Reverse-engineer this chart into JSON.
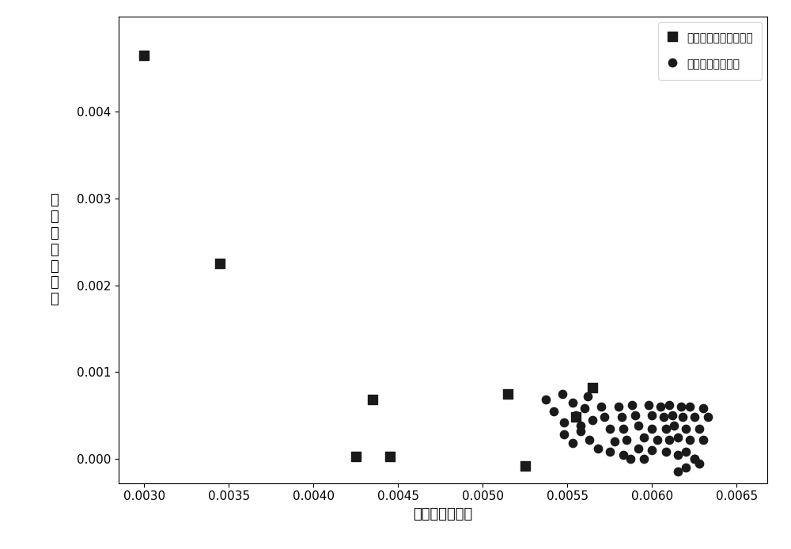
{
  "square_points": [
    [
      0.003,
      0.00465
    ],
    [
      0.00345,
      0.00225
    ],
    [
      0.00425,
      2.5e-05
    ],
    [
      0.00445,
      2.5e-05
    ],
    [
      0.00435,
      0.00068
    ],
    [
      0.00515,
      0.00075
    ],
    [
      0.00525,
      -8.5e-05
    ],
    [
      0.00555,
      0.00048
    ],
    [
      0.00565,
      0.00082
    ]
  ],
  "circle_points": [
    [
      0.00537,
      0.00068
    ],
    [
      0.00542,
      0.00055
    ],
    [
      0.00547,
      0.00075
    ],
    [
      0.00548,
      0.00042
    ],
    [
      0.00553,
      0.00065
    ],
    [
      0.00555,
      0.0005
    ],
    [
      0.00558,
      0.00038
    ],
    [
      0.0056,
      0.00058
    ],
    [
      0.00562,
      0.00072
    ],
    [
      0.00548,
      0.00028
    ],
    [
      0.00553,
      0.00018
    ],
    [
      0.00558,
      0.00032
    ],
    [
      0.00563,
      0.00022
    ],
    [
      0.00568,
      0.00012
    ],
    [
      0.00565,
      0.00045
    ],
    [
      0.0057,
      0.0006
    ],
    [
      0.00572,
      0.00048
    ],
    [
      0.00575,
      0.00035
    ],
    [
      0.00575,
      8e-05
    ],
    [
      0.00578,
      0.0002
    ],
    [
      0.0058,
      0.0006
    ],
    [
      0.00582,
      0.00048
    ],
    [
      0.00583,
      0.00035
    ],
    [
      0.00583,
      5e-05
    ],
    [
      0.00585,
      0.00022
    ],
    [
      0.00587,
      0.0
    ],
    [
      0.00588,
      0.00062
    ],
    [
      0.0059,
      0.0005
    ],
    [
      0.00592,
      0.00038
    ],
    [
      0.00592,
      0.00012
    ],
    [
      0.00595,
      0.00025
    ],
    [
      0.00595,
      0.0
    ],
    [
      0.00598,
      0.00062
    ],
    [
      0.006,
      0.0005
    ],
    [
      0.006,
      0.00035
    ],
    [
      0.006,
      0.0001
    ],
    [
      0.00603,
      0.00022
    ],
    [
      0.00605,
      0.0006
    ],
    [
      0.00607,
      0.00048
    ],
    [
      0.00608,
      0.00035
    ],
    [
      0.00608,
      8e-05
    ],
    [
      0.0061,
      0.00022
    ],
    [
      0.0061,
      0.00062
    ],
    [
      0.00612,
      0.0005
    ],
    [
      0.00613,
      0.00038
    ],
    [
      0.00615,
      5e-05
    ],
    [
      0.00615,
      0.00025
    ],
    [
      0.00617,
      0.0006
    ],
    [
      0.00618,
      0.00048
    ],
    [
      0.0062,
      0.00035
    ],
    [
      0.0062,
      8e-05
    ],
    [
      0.00622,
      0.00022
    ],
    [
      0.00622,
      0.0006
    ],
    [
      0.00625,
      0.0
    ],
    [
      0.00625,
      0.00048
    ],
    [
      0.00628,
      0.00035
    ],
    [
      0.00628,
      -5e-05
    ],
    [
      0.0063,
      0.00022
    ],
    [
      0.0063,
      0.00058
    ],
    [
      0.00633,
      0.00048
    ],
    [
      0.00615,
      -0.00015
    ],
    [
      0.0062,
      -0.0001
    ],
    [
      0.00625,
      -0.0
    ]
  ],
  "xlabel": "归一化矢量实部",
  "ylabel_chars": [
    "归",
    "一",
    "化",
    "矢",
    "量",
    "虚",
    "部"
  ],
  "legend_square": "误差超限的归一化矢量",
  "legend_circle": "正常的归一化矢量",
  "xlim": [
    0.00285,
    0.00668
  ],
  "ylim": [
    -0.00028,
    0.0051
  ],
  "xticks": [
    0.003,
    0.0035,
    0.004,
    0.0045,
    0.005,
    0.0055,
    0.006,
    0.0065
  ],
  "yticks": [
    0.0,
    0.001,
    0.002,
    0.003,
    0.004
  ],
  "marker_color": "#1a1a1a",
  "background_color": "#ffffff",
  "marker_size_square": 70,
  "marker_size_circle": 55,
  "font_size_ticks": 11,
  "font_size_label": 13,
  "font_size_legend": 13
}
